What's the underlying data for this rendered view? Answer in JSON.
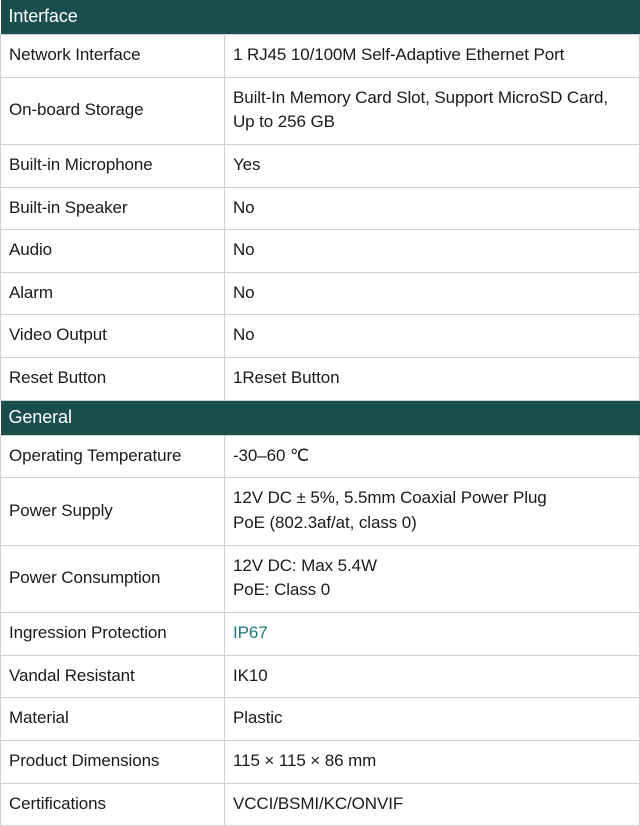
{
  "sections": [
    {
      "title": "Interface",
      "rows": [
        {
          "label": "Network Interface",
          "value": "1 RJ45 10/100M Self-Adaptive Ethernet Port",
          "link": false
        },
        {
          "label": "On-board Storage",
          "value": "Built-In Memory Card Slot, Support MicroSD Card, Up to 256 GB",
          "link": false
        },
        {
          "label": "Built-in Microphone",
          "value": "Yes",
          "link": false
        },
        {
          "label": "Built-in Speaker",
          "value": "No",
          "link": false
        },
        {
          "label": "Audio",
          "value": "No",
          "link": false
        },
        {
          "label": "Alarm",
          "value": "No",
          "link": false
        },
        {
          "label": "Video Output",
          "value": "No",
          "link": false
        },
        {
          "label": "Reset Button",
          "value": "1Reset Button",
          "link": false
        }
      ]
    },
    {
      "title": "General",
      "rows": [
        {
          "label": "Operating Temperature",
          "value": "-30–60 ℃",
          "link": false
        },
        {
          "label": "Power Supply",
          "value": "12V DC ± 5%, 5.5mm Coaxial Power Plug\nPoE (802.3af/at, class 0)",
          "link": false
        },
        {
          "label": "Power Consumption",
          "value": "12V DC: Max 5.4W\nPoE: Class 0",
          "link": false
        },
        {
          "label": "Ingression Protection",
          "value": "IP67",
          "link": true
        },
        {
          "label": "Vandal Resistant",
          "value": "IK10",
          "link": false
        },
        {
          "label": "Material",
          "value": "Plastic",
          "link": false
        },
        {
          "label": "Product Dimensions",
          "value": "115 × 115 × 86 mm",
          "link": false
        },
        {
          "label": "Certifications",
          "value": "VCCI/BSMI/KC/ONVIF",
          "link": false
        }
      ]
    }
  ],
  "colors": {
    "header_bg": "#1a4d4d",
    "header_text": "#ffffff",
    "border": "#d0d0d0",
    "text": "#1a1a1a",
    "link": "#1a7a7a"
  }
}
